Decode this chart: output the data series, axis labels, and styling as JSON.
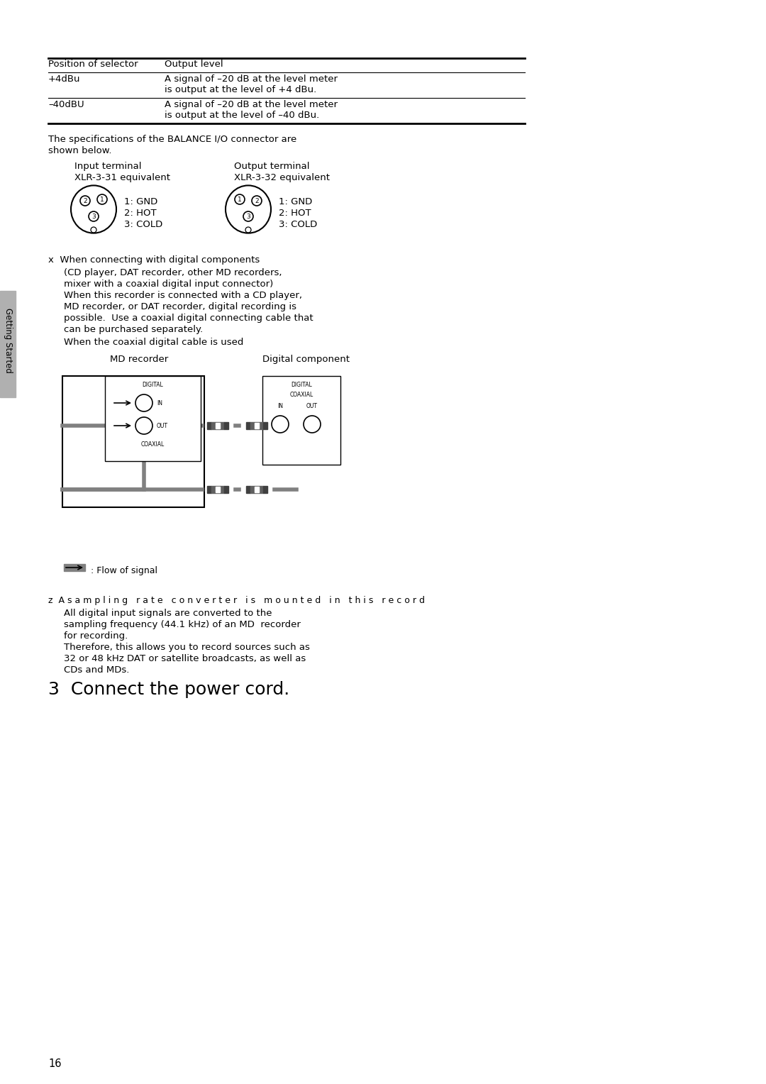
{
  "bg_color": "#ffffff",
  "text_color": "#000000",
  "page_number": "16",
  "sidebar_text": "Getting Started",
  "table_header": [
    "Position of selector",
    "Output level"
  ],
  "table_rows": [
    [
      "+4dBu",
      "A signal of –20 dB at the level meter",
      "is output at the level of +4 dBu."
    ],
    [
      "–40dBU",
      "A signal of –20 dB at the level meter",
      "is output at the level of –40 dBu."
    ]
  ],
  "balance_intro_line1": "The specifications of the BALANCE I/O connector are",
  "balance_intro_line2": "shown below.",
  "input_label_line1": "Input terminal",
  "input_label_line2": "XLR-3-31 equivalent",
  "output_label_line1": "Output terminal",
  "output_label_line2": "XLR-3-32 equivalent",
  "pin_labels": [
    "1: GND",
    "2: HOT",
    "3: COLD"
  ],
  "bullet_x_line0": "x  When connecting with digital components",
  "bullet_x_lines": [
    "(CD player, DAT recorder, other MD recorders,",
    "mixer with a coaxial digital input connector)",
    "When this recorder is connected with a CD player,",
    "MD recorder, or DAT recorder, digital recording is",
    "possible.  Use a coaxial digital connecting cable that",
    "can be purchased separately."
  ],
  "coaxial_cable_label": "When the coaxial digital cable is used",
  "md_recorder_label": "MD recorder",
  "digital_component_label": "Digital component",
  "flow_signal_label": ": Flow of signal",
  "bullet_z_line": "z  A s a m p l i n g   r a t e   c o n v e r t e r   i s   m o u n t e d   i n   t h i s   r e c o r d",
  "bullet_z_lines": [
    "All digital input signals are converted to the",
    "sampling frequency (44.1 kHz) of an MD  recorder",
    "for recording.",
    "Therefore, this allows you to record sources such as",
    "32 or 48 kHz DAT or satellite broadcasts, as well as",
    "CDs and MDs."
  ],
  "connect_power": "3  Connect the power cord.",
  "gray_color": "#c8c8c8",
  "sidebar_gray": "#b0b0b0"
}
